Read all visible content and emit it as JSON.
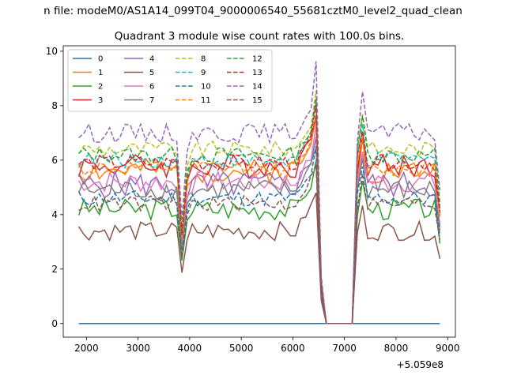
{
  "chart_data": {
    "type": "line",
    "suptitle": "n file: modeM0/AS1A14_099T04_9000006540_55681cztM0_level2_quad_clean",
    "title": "Quadrant 3 module wise count rates with 100.0s bins.",
    "xlabel": "",
    "ylabel": "",
    "x_offset_label": "+5.059e8",
    "xlim": [
      1550,
      9150
    ],
    "ylim": [
      -0.5,
      10.2
    ],
    "x_ticks": [
      2000,
      3000,
      4000,
      5000,
      6000,
      7000,
      8000,
      9000
    ],
    "y_ticks": [
      0,
      2,
      4,
      6,
      8,
      10
    ],
    "x_tick_labels": [
      "2000",
      "3000",
      "4000",
      "5000",
      "6000",
      "7000",
      "8000",
      "9000"
    ],
    "y_tick_labels": [
      "0",
      "2",
      "4",
      "6",
      "8",
      "10"
    ],
    "grid": false,
    "legend": {
      "placement": "top-left",
      "columns": 4
    },
    "x": {
      "start": 1850,
      "step": 100,
      "count": 71,
      "note_gap": "bins 6650-7150 are zero for all modules"
    },
    "series": [
      {
        "name": "0",
        "color": "#1f77b4",
        "dash": "solid",
        "level": 0.0,
        "jitter": 0.0,
        "seed": 1
      },
      {
        "name": "1",
        "color": "#ff7f0e",
        "dash": "solid",
        "level": 5.6,
        "jitter": 0.45,
        "seed": 2
      },
      {
        "name": "2",
        "color": "#2ca02c",
        "dash": "solid",
        "level": 4.2,
        "jitter": 0.4,
        "seed": 3
      },
      {
        "name": "3",
        "color": "#d62728",
        "dash": "solid",
        "level": 5.8,
        "jitter": 0.45,
        "seed": 4
      },
      {
        "name": "4",
        "color": "#9467bd",
        "dash": "solid",
        "level": 5.1,
        "jitter": 0.5,
        "seed": 5
      },
      {
        "name": "5",
        "color": "#8c564b",
        "dash": "solid",
        "level": 3.4,
        "jitter": 0.35,
        "seed": 6
      },
      {
        "name": "6",
        "color": "#e377c2",
        "dash": "solid",
        "level": 5.2,
        "jitter": 0.4,
        "seed": 7
      },
      {
        "name": "7",
        "color": "#7f7f7f",
        "dash": "solid",
        "level": 4.9,
        "jitter": 0.4,
        "seed": 8
      },
      {
        "name": "8",
        "color": "#bcbd22",
        "dash": "dashed",
        "level": 6.4,
        "jitter": 0.3,
        "seed": 9
      },
      {
        "name": "9",
        "color": "#17becf",
        "dash": "dashed",
        "level": 6.0,
        "jitter": 0.3,
        "seed": 10
      },
      {
        "name": "10",
        "color": "#1f77b4",
        "dash": "dashed",
        "level": 4.6,
        "jitter": 0.3,
        "seed": 11
      },
      {
        "name": "11",
        "color": "#ff7f0e",
        "dash": "dashed",
        "level": 5.7,
        "jitter": 0.3,
        "seed": 12
      },
      {
        "name": "12",
        "color": "#2ca02c",
        "dash": "dashed",
        "level": 6.2,
        "jitter": 0.3,
        "seed": 13
      },
      {
        "name": "13",
        "color": "#d62728",
        "dash": "dashed",
        "level": 5.9,
        "jitter": 0.3,
        "seed": 14
      },
      {
        "name": "14",
        "color": "#9467bd",
        "dash": "dashed",
        "level": 7.0,
        "jitter": 0.35,
        "seed": 15
      },
      {
        "name": "15",
        "color": "#8c564b",
        "dash": "dashed",
        "level": 4.4,
        "jitter": 0.3,
        "seed": 16
      }
    ]
  }
}
